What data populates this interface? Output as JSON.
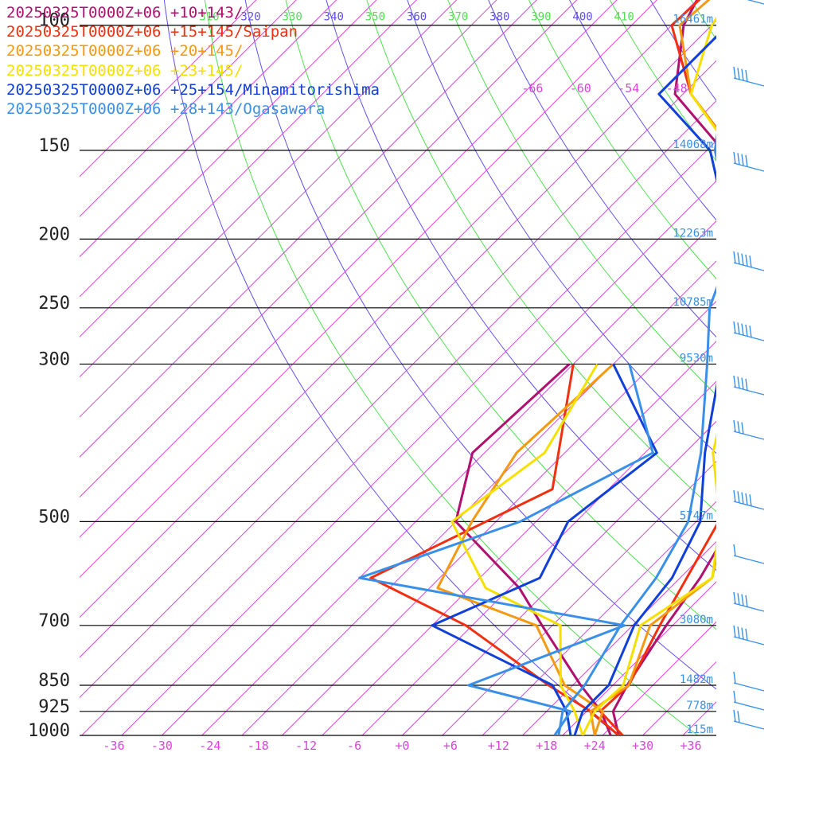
{
  "chart_data": {
    "type": "line",
    "title": "",
    "xlabel": "",
    "ylabel": "",
    "x_ticks": [
      "-36",
      "-30",
      "-24",
      "-18",
      "-12",
      "-6",
      "+0",
      "+6",
      "+12",
      "+18",
      "+24",
      "+30",
      "+36"
    ],
    "x_tick_values": [
      -36,
      -30,
      -24,
      -18,
      -12,
      -6,
      0,
      6,
      12,
      18,
      24,
      30,
      36
    ],
    "pressure_levels": [
      {
        "p": 100,
        "label": "100",
        "height": "16461m"
      },
      {
        "p": 150,
        "label": "150",
        "height": "14068m"
      },
      {
        "p": 200,
        "label": "200",
        "height": "12263m"
      },
      {
        "p": 250,
        "label": "250",
        "height": "10785m"
      },
      {
        "p": 300,
        "label": "300",
        "height": "9530m"
      },
      {
        "p": 500,
        "label": "500",
        "height": "5747m"
      },
      {
        "p": 700,
        "label": "700",
        "height": "3080m"
      },
      {
        "p": 850,
        "label": "850",
        "height": "1482m"
      },
      {
        "p": 925,
        "label": "925",
        "height": "778m"
      },
      {
        "p": 1000,
        "label": "1000",
        "height": "115m"
      }
    ],
    "theta_labels": [
      "310",
      "320",
      "330",
      "340",
      "350",
      "360",
      "370",
      "380",
      "390",
      "400",
      "410"
    ],
    "theta_values": [
      310,
      320,
      330,
      340,
      350,
      360,
      370,
      380,
      390,
      400,
      410
    ],
    "isotherm_top_labels": [
      "-66",
      "-60",
      "-54",
      "-48"
    ],
    "isotherm_top_values": [
      -66,
      -60,
      -54,
      -48
    ],
    "series": [
      {
        "name": "20250325T0000Z+06 +10+143/",
        "color": "#b0106e",
        "temp": [
          [
            1000,
            27
          ],
          [
            925,
            23.3
          ],
          [
            850,
            21.8
          ],
          [
            700,
            19.2
          ],
          [
            600,
            17.5
          ],
          [
            500,
            14.6
          ],
          [
            400,
            7.6
          ],
          [
            300,
            -0.8
          ],
          [
            250,
            -8.5
          ],
          [
            200,
            -19.5
          ],
          [
            150,
            -33
          ],
          [
            125,
            -46
          ],
          [
            100,
            -53.5
          ],
          [
            70,
            -60
          ],
          [
            55,
            -62
          ]
        ],
        "dew": [
          [
            1000,
            26
          ],
          [
            925,
            21.8
          ],
          [
            850,
            16
          ],
          [
            700,
            3.7
          ],
          [
            620,
            -3.8
          ],
          [
            500,
            -20
          ],
          [
            400,
            -26.5
          ],
          [
            300,
            -25.5
          ]
        ]
      },
      {
        "name": "20250325T0000Z+06 +15+145/Saipan",
        "color": "#f03010",
        "temp": [
          [
            1000,
            27.5
          ],
          [
            925,
            21.7
          ],
          [
            850,
            22
          ],
          [
            700,
            18.4
          ],
          [
            500,
            12.8
          ],
          [
            400,
            5
          ],
          [
            300,
            -5
          ],
          [
            250,
            -10.5
          ],
          [
            200,
            -19.5
          ],
          [
            150,
            -31.7
          ],
          [
            125,
            -44
          ],
          [
            100,
            -55
          ],
          [
            75,
            -54
          ],
          [
            55,
            -60
          ]
        ],
        "dew": [
          [
            1000,
            27
          ],
          [
            925,
            20.5
          ],
          [
            850,
            12
          ],
          [
            700,
            -5.8
          ],
          [
            600,
            -23.6
          ],
          [
            450,
            -12
          ],
          [
            300,
            -25
          ]
        ]
      },
      {
        "name": "20250325T0000Z+06 +20+145/",
        "color": "#f59a10",
        "temp": [
          [
            1000,
            24
          ],
          [
            925,
            20.5
          ],
          [
            850,
            22
          ],
          [
            700,
            17.2
          ],
          [
            600,
            19
          ],
          [
            500,
            13.5
          ],
          [
            400,
            5
          ],
          [
            300,
            -3.5
          ],
          [
            250,
            -10.5
          ],
          [
            200,
            -19
          ],
          [
            150,
            -31.8
          ],
          [
            125,
            -44
          ],
          [
            100,
            -54
          ],
          [
            70,
            -52
          ],
          [
            55,
            -58
          ]
        ],
        "dew": [
          [
            1000,
            24
          ],
          [
            925,
            22
          ],
          [
            850,
            14
          ],
          [
            700,
            3
          ],
          [
            620,
            -14
          ],
          [
            500,
            -18
          ],
          [
            400,
            -21
          ],
          [
            300,
            -20
          ]
        ]
      },
      {
        "name": "20250325T0000Z+06 +23+145/",
        "color": "#f5e000",
        "temp": [
          [
            1000,
            22.5
          ],
          [
            925,
            21
          ],
          [
            850,
            21.3
          ],
          [
            700,
            16
          ],
          [
            600,
            19
          ],
          [
            500,
            13
          ],
          [
            400,
            3.5
          ],
          [
            300,
            -5
          ],
          [
            250,
            -10.5
          ],
          [
            200,
            -19.5
          ],
          [
            150,
            -32
          ],
          [
            125,
            -44
          ],
          [
            100,
            -50
          ],
          [
            70,
            -54
          ],
          [
            55,
            -59
          ]
        ],
        "dew": [
          [
            1000,
            22.5
          ],
          [
            925,
            18.5
          ],
          [
            850,
            13.5
          ],
          [
            700,
            6
          ],
          [
            620,
            -8
          ],
          [
            500,
            -20.5
          ],
          [
            400,
            -17.5
          ],
          [
            300,
            -22
          ]
        ]
      },
      {
        "name": "20250325T0000Z+06 +25+154/Minamitorishima",
        "color": "#1040d8",
        "temp": [
          [
            1000,
            21.5
          ],
          [
            925,
            19.5
          ],
          [
            850,
            19.5
          ],
          [
            700,
            15.2
          ],
          [
            600,
            14
          ],
          [
            500,
            10.5
          ],
          [
            400,
            2.5
          ],
          [
            300,
            -6.6
          ],
          [
            250,
            -13
          ],
          [
            200,
            -21
          ],
          [
            150,
            -34.6
          ],
          [
            125,
            -48
          ],
          [
            100,
            -48
          ],
          [
            70,
            -53
          ],
          [
            55,
            -57
          ]
        ],
        "dew": [
          [
            1000,
            21
          ],
          [
            925,
            17.5
          ],
          [
            850,
            12.5
          ],
          [
            700,
            -10
          ],
          [
            600,
            -2.5
          ],
          [
            500,
            -6
          ],
          [
            400,
            -3.5
          ],
          [
            300,
            -20
          ]
        ]
      },
      {
        "name": "20250325T0000Z+06 +28+143/Ogasawara",
        "color": "#3a90e8",
        "temp": [
          [
            1000,
            19.5
          ],
          [
            925,
            17
          ],
          [
            850,
            16.5
          ],
          [
            700,
            13.5
          ],
          [
            600,
            12
          ],
          [
            500,
            9
          ],
          [
            400,
            2
          ],
          [
            300,
            -8.3
          ],
          [
            250,
            -15
          ],
          [
            200,
            -20.5
          ],
          [
            150,
            -34
          ],
          [
            125,
            -40
          ],
          [
            100,
            -38
          ],
          [
            70,
            -39
          ],
          [
            55,
            -51
          ]
        ],
        "dew": [
          [
            1000,
            19
          ],
          [
            925,
            18
          ],
          [
            850,
            2
          ],
          [
            700,
            14
          ],
          [
            600,
            -25
          ],
          [
            500,
            -12
          ],
          [
            400,
            -4
          ],
          [
            300,
            -18
          ]
        ]
      }
    ]
  }
}
